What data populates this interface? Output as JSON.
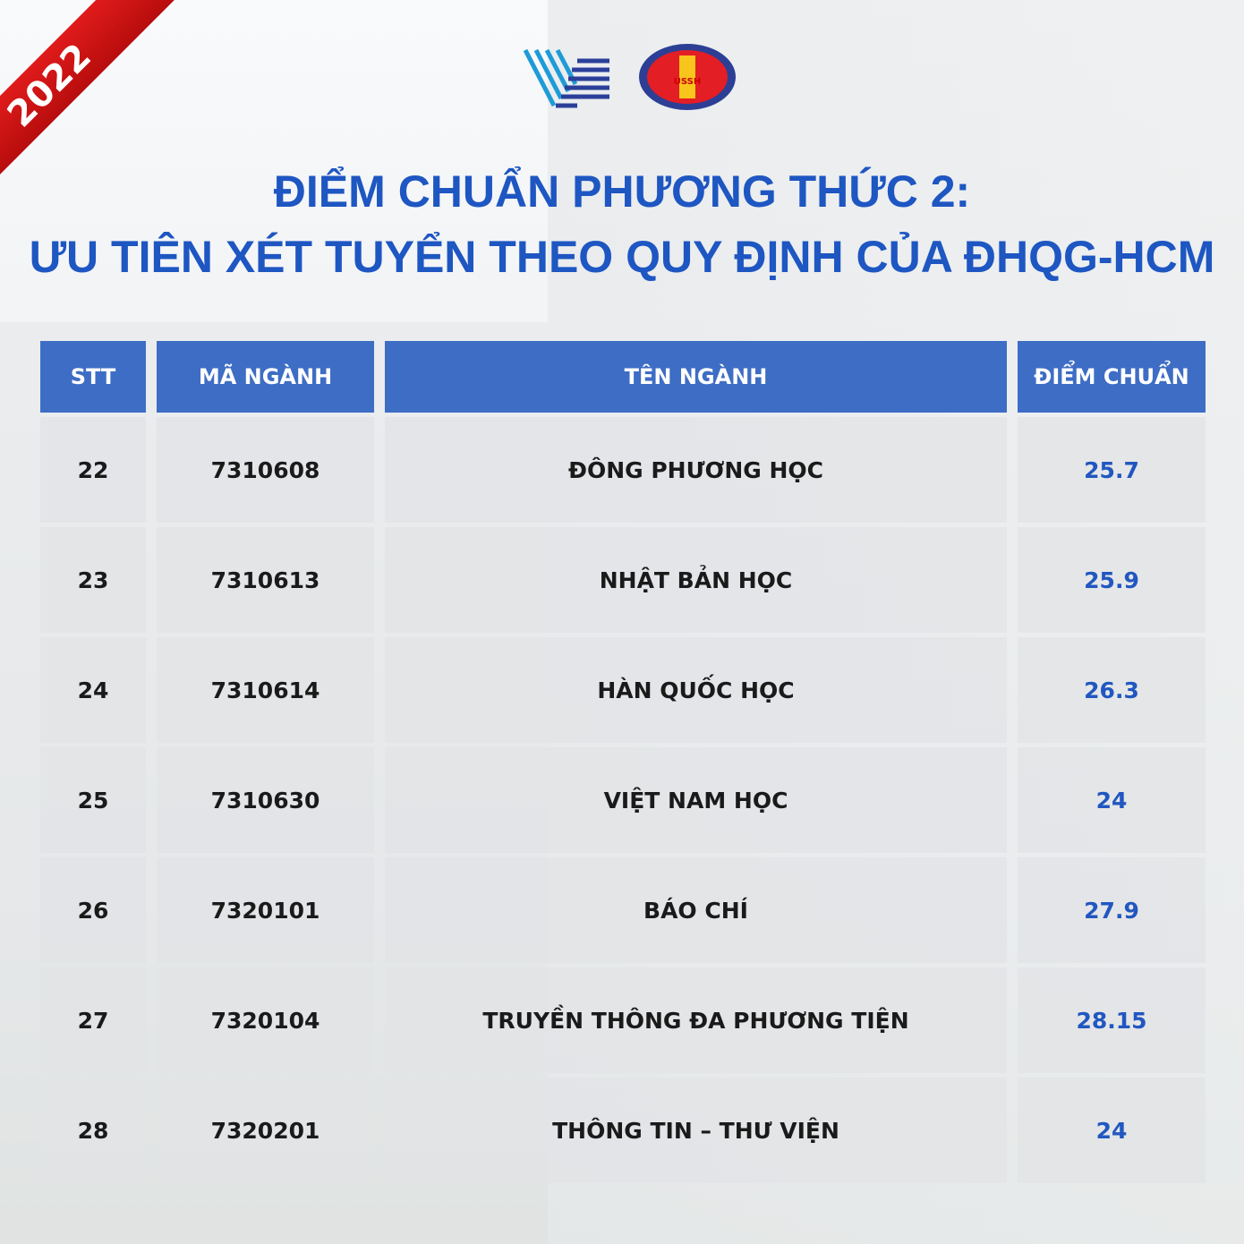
{
  "ribbon": {
    "year": "2022",
    "color": "#d41414"
  },
  "logos": {
    "left": "VNU-HCM logo",
    "right": "USSH VNU HCM"
  },
  "title": {
    "line1": "ĐIỂM CHUẨN PHƯƠNG THỨC 2:",
    "line2": "ƯU TIÊN XÉT TUYỂN THEO QUY ĐỊNH CỦA ĐHQG-HCM",
    "color": "#1e56c2"
  },
  "table": {
    "headers": [
      "STT",
      "MÃ NGÀNH",
      "TÊN NGÀNH",
      "ĐIỂM CHUẨN"
    ],
    "rows": [
      [
        "22",
        "7310608",
        "ĐÔNG PHƯƠNG HỌC",
        "25.7"
      ],
      [
        "23",
        "7310613",
        "NHẬT BẢN HỌC",
        "25.9"
      ],
      [
        "24",
        "7310614",
        "HÀN QUỐC HỌC",
        "26.3"
      ],
      [
        "25",
        "7310630",
        "VIỆT NAM HỌC",
        "24"
      ],
      [
        "26",
        "7320101",
        "BÁO CHÍ",
        "27.9"
      ],
      [
        "27",
        "7320104",
        "TRUYỀN THÔNG ĐA PHƯƠNG TIỆN",
        "28.15"
      ],
      [
        "28",
        "7320201",
        "THÔNG TIN – THƯ VIỆN",
        "24"
      ]
    ]
  }
}
